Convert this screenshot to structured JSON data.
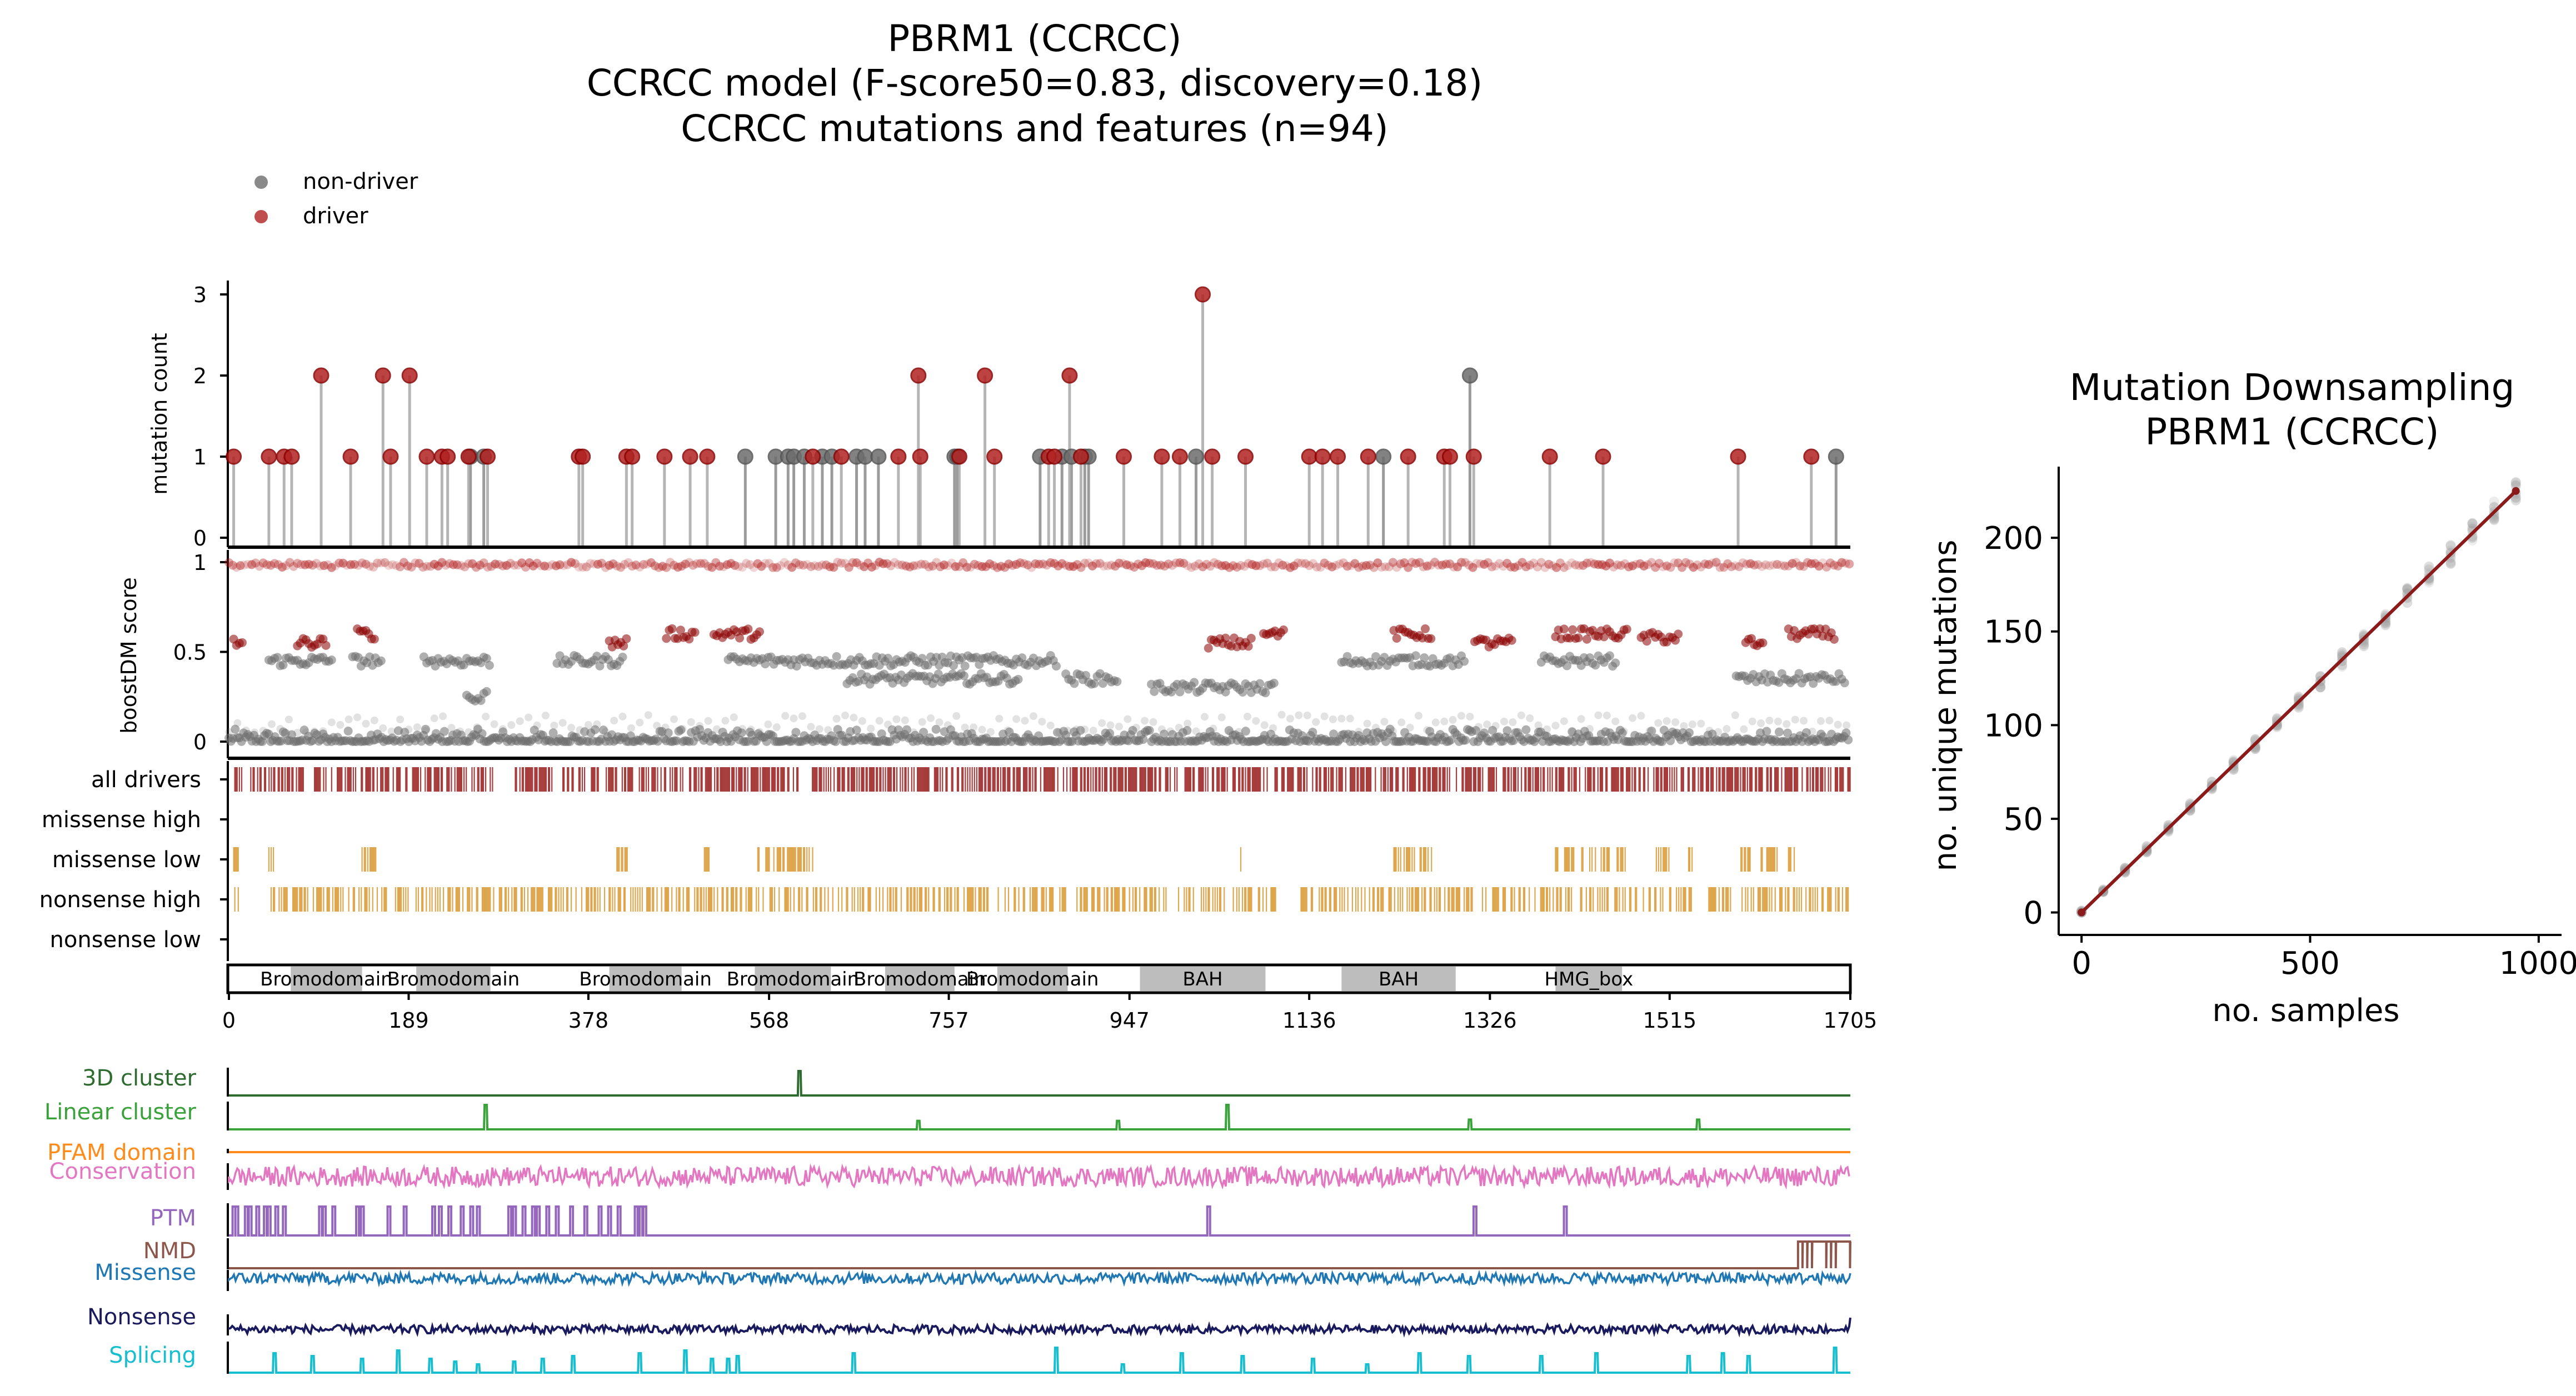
{
  "title_lines": [
    "PBRM1 (CCRCC)",
    "CCRCC model (F-score50=0.83, discovery=0.18)",
    "CCRCC mutations and features (n=94)"
  ],
  "legend": [
    {
      "label": "non-driver",
      "color": "#6d6d6d"
    },
    {
      "label": "driver",
      "color": "#b22222"
    }
  ],
  "colors": {
    "driver": "#b22222",
    "driver_dark": "#8b0000",
    "nondriver": "#6d6d6d",
    "stem": "#a9a9a9",
    "orange": "#d38a16",
    "domain_box": "#bdbdbd",
    "line_fit": "#8b1a1a"
  },
  "chart_data": [
    {
      "type": "lollipop",
      "ylabel": "mutation count",
      "ylim": [
        0,
        3
      ],
      "yticks": [
        0,
        1,
        2,
        3
      ],
      "xlim": [
        0,
        1705
      ],
      "xticks": [
        "0",
        "189",
        "378",
        "568",
        "757",
        "947",
        "1136",
        "1326",
        "1515",
        "1705"
      ],
      "driver": [
        {
          "pos": 5,
          "count": 1
        },
        {
          "pos": 42,
          "count": 1
        },
        {
          "pos": 58,
          "count": 1
        },
        {
          "pos": 66,
          "count": 1
        },
        {
          "pos": 97,
          "count": 2
        },
        {
          "pos": 128,
          "count": 1
        },
        {
          "pos": 162,
          "count": 2
        },
        {
          "pos": 170,
          "count": 1
        },
        {
          "pos": 190,
          "count": 2
        },
        {
          "pos": 208,
          "count": 1
        },
        {
          "pos": 224,
          "count": 1
        },
        {
          "pos": 230,
          "count": 1
        },
        {
          "pos": 252,
          "count": 1
        },
        {
          "pos": 272,
          "count": 1
        },
        {
          "pos": 368,
          "count": 1
        },
        {
          "pos": 372,
          "count": 1
        },
        {
          "pos": 418,
          "count": 1
        },
        {
          "pos": 424,
          "count": 1
        },
        {
          "pos": 458,
          "count": 1
        },
        {
          "pos": 485,
          "count": 1
        },
        {
          "pos": 503,
          "count": 1
        },
        {
          "pos": 614,
          "count": 1
        },
        {
          "pos": 644,
          "count": 1
        },
        {
          "pos": 704,
          "count": 1
        },
        {
          "pos": 725,
          "count": 2
        },
        {
          "pos": 727,
          "count": 1
        },
        {
          "pos": 768,
          "count": 1
        },
        {
          "pos": 795,
          "count": 2
        },
        {
          "pos": 805,
          "count": 1
        },
        {
          "pos": 862,
          "count": 1
        },
        {
          "pos": 868,
          "count": 1
        },
        {
          "pos": 884,
          "count": 2
        },
        {
          "pos": 896,
          "count": 1
        },
        {
          "pos": 941,
          "count": 1
        },
        {
          "pos": 981,
          "count": 1
        },
        {
          "pos": 1000,
          "count": 1
        },
        {
          "pos": 1024,
          "count": 3
        },
        {
          "pos": 1034,
          "count": 1
        },
        {
          "pos": 1069,
          "count": 1
        },
        {
          "pos": 1136,
          "count": 1
        },
        {
          "pos": 1150,
          "count": 1
        },
        {
          "pos": 1166,
          "count": 1
        },
        {
          "pos": 1198,
          "count": 1
        },
        {
          "pos": 1240,
          "count": 1
        },
        {
          "pos": 1278,
          "count": 1
        },
        {
          "pos": 1284,
          "count": 1
        },
        {
          "pos": 1309,
          "count": 1
        },
        {
          "pos": 1389,
          "count": 1
        },
        {
          "pos": 1445,
          "count": 1
        },
        {
          "pos": 1587,
          "count": 1
        },
        {
          "pos": 1664,
          "count": 1
        }
      ],
      "nondriver": [
        {
          "pos": 254,
          "count": 1
        },
        {
          "pos": 268,
          "count": 1
        },
        {
          "pos": 543,
          "count": 1
        },
        {
          "pos": 575,
          "count": 1
        },
        {
          "pos": 588,
          "count": 1
        },
        {
          "pos": 594,
          "count": 1
        },
        {
          "pos": 605,
          "count": 1
        },
        {
          "pos": 624,
          "count": 1
        },
        {
          "pos": 634,
          "count": 1
        },
        {
          "pos": 660,
          "count": 1
        },
        {
          "pos": 669,
          "count": 1
        },
        {
          "pos": 683,
          "count": 1
        },
        {
          "pos": 763,
          "count": 1
        },
        {
          "pos": 766,
          "count": 1
        },
        {
          "pos": 853,
          "count": 1
        },
        {
          "pos": 876,
          "count": 1
        },
        {
          "pos": 886,
          "count": 1
        },
        {
          "pos": 900,
          "count": 1
        },
        {
          "pos": 904,
          "count": 1
        },
        {
          "pos": 1017,
          "count": 1
        },
        {
          "pos": 1214,
          "count": 1
        },
        {
          "pos": 1305,
          "count": 2
        },
        {
          "pos": 1690,
          "count": 1
        }
      ]
    },
    {
      "type": "scatter",
      "ylabel": "boostDM score",
      "ylim": [
        0,
        1
      ],
      "yticks": [
        "0",
        "0.5",
        "1"
      ],
      "bands": [
        {
          "from": 0,
          "to": 1705,
          "mode": "base"
        },
        {
          "from": 0,
          "to": 1705,
          "mode": "top"
        },
        {
          "from": 5,
          "to": 15,
          "y": 0.55,
          "mode": "driver"
        },
        {
          "from": 42,
          "to": 110,
          "y": 0.45,
          "mode": "gray"
        },
        {
          "from": 72,
          "to": 102,
          "y": 0.55,
          "mode": "driver"
        },
        {
          "from": 130,
          "to": 160,
          "y": 0.45,
          "mode": "gray"
        },
        {
          "from": 135,
          "to": 155,
          "y": 0.6,
          "mode": "driver"
        },
        {
          "from": 205,
          "to": 275,
          "y": 0.45,
          "mode": "gray"
        },
        {
          "from": 250,
          "to": 272,
          "y": 0.25,
          "mode": "gray"
        },
        {
          "from": 345,
          "to": 415,
          "y": 0.45,
          "mode": "gray"
        },
        {
          "from": 400,
          "to": 420,
          "y": 0.55,
          "mode": "driver"
        },
        {
          "from": 460,
          "to": 490,
          "y": 0.6,
          "mode": "driver"
        },
        {
          "from": 510,
          "to": 560,
          "y": 0.6,
          "mode": "driver"
        },
        {
          "from": 525,
          "to": 870,
          "y": 0.45,
          "mode": "gray"
        },
        {
          "from": 650,
          "to": 830,
          "y": 0.35,
          "mode": "gray"
        },
        {
          "from": 880,
          "to": 935,
          "y": 0.35,
          "mode": "gray"
        },
        {
          "from": 970,
          "to": 1100,
          "y": 0.3,
          "mode": "gray"
        },
        {
          "from": 1030,
          "to": 1075,
          "y": 0.55,
          "mode": "driver"
        },
        {
          "from": 1088,
          "to": 1110,
          "y": 0.6,
          "mode": "driver"
        },
        {
          "from": 1170,
          "to": 1300,
          "y": 0.45,
          "mode": "gray"
        },
        {
          "from": 1225,
          "to": 1265,
          "y": 0.6,
          "mode": "driver"
        },
        {
          "from": 1310,
          "to": 1350,
          "y": 0.55,
          "mode": "driver"
        },
        {
          "from": 1380,
          "to": 1460,
          "y": 0.45,
          "mode": "gray"
        },
        {
          "from": 1395,
          "to": 1470,
          "y": 0.6,
          "mode": "driver"
        },
        {
          "from": 1485,
          "to": 1525,
          "y": 0.58,
          "mode": "driver"
        },
        {
          "from": 1585,
          "to": 1700,
          "y": 0.35,
          "mode": "gray"
        },
        {
          "from": 1595,
          "to": 1615,
          "y": 0.55,
          "mode": "driver"
        },
        {
          "from": 1640,
          "to": 1690,
          "y": 0.6,
          "mode": "driver"
        }
      ]
    },
    {
      "type": "tracks",
      "tracks": [
        {
          "label": "all drivers",
          "color": "#8b0000",
          "segments": [
            [
              5,
              80
            ],
            [
              90,
              280
            ],
            [
              300,
              340
            ],
            [
              350,
              600
            ],
            [
              610,
              980
            ],
            [
              985,
              1095
            ],
            [
              1100,
              1705
            ]
          ],
          "density": 0.6
        },
        {
          "label": "missense high",
          "color": "#8b0000",
          "segments": [],
          "density": 0
        },
        {
          "label": "missense low",
          "color": "#d38a16",
          "segments": [
            [
              5,
              10
            ],
            [
              42,
              50
            ],
            [
              140,
              155
            ],
            [
              408,
              420
            ],
            [
              500,
              505
            ],
            [
              555,
              620
            ],
            [
              1064,
              1066
            ],
            [
              1225,
              1265
            ],
            [
              1395,
              1470
            ],
            [
              1495,
              1515
            ],
            [
              1535,
              1540
            ],
            [
              1590,
              1600
            ],
            [
              1610,
              1650
            ]
          ],
          "density": 0.55
        },
        {
          "label": "nonsense high",
          "color": "#d38a16",
          "segments": [
            [
              5,
              10
            ],
            [
              42,
              360
            ],
            [
              365,
              1105
            ],
            [
              1125,
              1540
            ],
            [
              1555,
              1580
            ],
            [
              1590,
              1705
            ]
          ],
          "density": 0.45
        },
        {
          "label": "nonsense low",
          "color": "#d38a16",
          "segments": [],
          "density": 0
        }
      ]
    },
    {
      "type": "domains",
      "protein_length": 1705,
      "domains": [
        {
          "name": "Bromodomain",
          "start": 65,
          "end": 140
        },
        {
          "name": "Bromodomain",
          "start": 197,
          "end": 275
        },
        {
          "name": "Bromodomain",
          "start": 400,
          "end": 476
        },
        {
          "name": "Bromodomain",
          "start": 553,
          "end": 633
        },
        {
          "name": "Bromodomain",
          "start": 690,
          "end": 763
        },
        {
          "name": "Bromodomain",
          "start": 808,
          "end": 882
        },
        {
          "name": "BAH",
          "start": 958,
          "end": 1090
        },
        {
          "name": "BAH",
          "start": 1170,
          "end": 1290
        },
        {
          "name": "HMG_box",
          "start": 1395,
          "end": 1465
        }
      ]
    },
    {
      "type": "feature_tracks",
      "features": [
        {
          "label": "3D cluster",
          "color": "#2e6b2e",
          "kind": "spikes",
          "spikes": [
            [
              600,
              1.0
            ]
          ]
        },
        {
          "label": "Linear cluster",
          "color": "#3aa23a",
          "kind": "spikes",
          "spikes": [
            [
              270,
              1.0
            ],
            [
              725,
              0.35
            ],
            [
              935,
              0.35
            ],
            [
              1050,
              1.0
            ],
            [
              1305,
              0.4
            ],
            [
              1545,
              0.4
            ]
          ]
        },
        {
          "label": "PFAM domain",
          "color": "#ff8c1a",
          "kind": "flat"
        },
        {
          "label": "Conservation",
          "color": "#e377c2",
          "kind": "noise"
        },
        {
          "label": "PTM",
          "color": "#9467bd",
          "kind": "ptm",
          "spikes": [
            [
              5,
              1
            ],
            [
              8,
              1
            ],
            [
              18,
              1
            ],
            [
              22,
              1
            ],
            [
              30,
              1
            ],
            [
              38,
              1
            ],
            [
              42,
              1
            ],
            [
              50,
              1
            ],
            [
              58,
              1
            ],
            [
              96,
              1
            ],
            [
              100,
              1
            ],
            [
              110,
              1
            ],
            [
              135,
              1
            ],
            [
              140,
              1
            ],
            [
              168,
              1
            ],
            [
              185,
              1
            ],
            [
              215,
              1
            ],
            [
              222,
              1
            ],
            [
              232,
              1
            ],
            [
              245,
              1
            ],
            [
              255,
              1
            ],
            [
              262,
              1
            ],
            [
              295,
              1
            ],
            [
              300,
              1
            ],
            [
              310,
              1
            ],
            [
              320,
              1
            ],
            [
              325,
              1
            ],
            [
              335,
              1
            ],
            [
              345,
              1
            ],
            [
              360,
              1
            ],
            [
              375,
              1
            ],
            [
              390,
              1
            ],
            [
              400,
              1
            ],
            [
              410,
              1
            ],
            [
              428,
              1
            ],
            [
              433,
              1
            ],
            [
              437,
              1
            ],
            [
              1030,
              1
            ],
            [
              1310,
              1
            ],
            [
              1405,
              1
            ]
          ]
        },
        {
          "label": "NMD",
          "color": "#8c564b",
          "kind": "nmd"
        },
        {
          "label": "Missense",
          "color": "#1f77b4",
          "kind": "noise2"
        },
        {
          "label": "Nonsense",
          "color": "#1a1a5e",
          "kind": "noise3"
        },
        {
          "label": "Splicing",
          "color": "#17becf",
          "kind": "spikes",
          "spikes": [
            [
              48,
              0.7
            ],
            [
              88,
              0.6
            ],
            [
              140,
              0.5
            ],
            [
              178,
              0.8
            ],
            [
              212,
              0.5
            ],
            [
              238,
              0.4
            ],
            [
              262,
              0.3
            ],
            [
              300,
              0.4
            ],
            [
              330,
              0.5
            ],
            [
              362,
              0.6
            ],
            [
              432,
              0.7
            ],
            [
              480,
              0.8
            ],
            [
              508,
              0.5
            ],
            [
              525,
              0.5
            ],
            [
              535,
              0.6
            ],
            [
              657,
              0.7
            ],
            [
              870,
              0.9
            ],
            [
              940,
              0.3
            ],
            [
              1002,
              0.7
            ],
            [
              1066,
              0.6
            ],
            [
              1140,
              0.5
            ],
            [
              1197,
              0.3
            ],
            [
              1252,
              0.7
            ],
            [
              1304,
              0.6
            ],
            [
              1380,
              0.6
            ],
            [
              1438,
              0.7
            ],
            [
              1535,
              0.6
            ],
            [
              1571,
              0.7
            ],
            [
              1598,
              0.6
            ],
            [
              1689,
              0.9
            ]
          ]
        }
      ]
    },
    {
      "type": "line",
      "title_lines": [
        "Mutation Downsampling",
        "PBRM1 (CCRCC)"
      ],
      "xlabel": "no. samples",
      "ylabel": "no. unique mutations",
      "xlim": [
        -50,
        1050
      ],
      "ylim": [
        -12,
        238
      ],
      "xticks": [
        0,
        500,
        1000
      ],
      "yticks": [
        0,
        50,
        100,
        150,
        200
      ],
      "series": [
        {
          "name": "fit",
          "x": [
            0,
            950
          ],
          "y": [
            0,
            225
          ]
        }
      ],
      "sample_step": 47.5,
      "sample_spread": 10
    }
  ]
}
